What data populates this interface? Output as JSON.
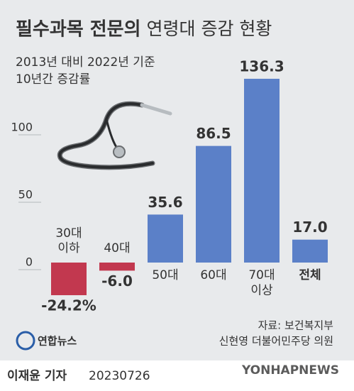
{
  "chart_data": {
    "type": "bar",
    "title": [
      "필수과목 전문의",
      "연령대 증감 현황"
    ],
    "subtitle": [
      "2013년 대비 2022년 기준",
      "10년간 증감률"
    ],
    "categories": [
      "30대\n이하",
      "40대",
      "50대",
      "60대",
      "70대\n이상",
      "전체"
    ],
    "values": [
      -24.2,
      -6.0,
      35.6,
      86.5,
      136.3,
      17.0
    ],
    "value_labels": [
      "-24.2%",
      "-6.0",
      "35.6",
      "86.5",
      "136.3",
      "17.0"
    ],
    "colors": [
      "#c2384f",
      "#c2384f",
      "#5b80c8",
      "#5b80c8",
      "#5b80c8",
      "#5b80c8"
    ],
    "ylim": [
      -50,
      150
    ],
    "yticks": [
      0,
      50,
      100
    ],
    "grid": true,
    "source": [
      "자료: 보건복지부",
      "신현영 더불어민주당 의원"
    ]
  },
  "logo": "연합뉴스",
  "watermark": "YONHAPNEWS",
  "footer": {
    "reporter": "이재윤 기자",
    "date": "20230726"
  }
}
